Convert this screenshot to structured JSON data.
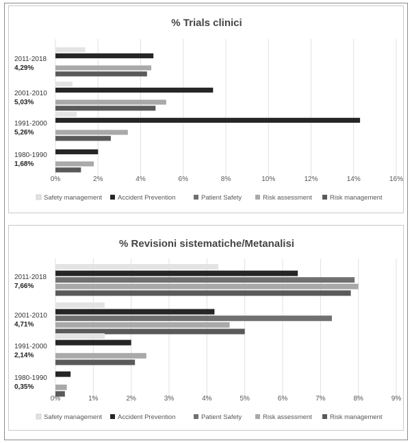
{
  "chart_data": [
    {
      "type": "bar",
      "orientation": "horizontal",
      "title": "% Trials clinici",
      "categories": [
        {
          "period": "2011-2018",
          "total": "4,29%"
        },
        {
          "period": "2001-2010",
          "total": "5,03%"
        },
        {
          "period": "1991-2000",
          "total": "5,26%"
        },
        {
          "period": "1980-1990",
          "total": "1,68%"
        }
      ],
      "x_ticks": [
        "0%",
        "2%",
        "4%",
        "6%",
        "8%",
        "10%",
        "12%",
        "14%",
        "16%"
      ],
      "xlim": [
        0,
        16
      ],
      "grid": true,
      "legend_position": "bottom",
      "series": [
        {
          "name": "Safety management",
          "color": "#e3e3e3",
          "values": [
            1.4,
            0.8,
            1.0,
            0
          ]
        },
        {
          "name": "Accident Prevention",
          "color": "#262626",
          "values": [
            4.6,
            7.4,
            14.3,
            2.0
          ]
        },
        {
          "name": "Patient Safety",
          "color": "#707070",
          "values": [
            0,
            0,
            0,
            0
          ]
        },
        {
          "name": "Risk assessment",
          "color": "#a9a9a9",
          "values": [
            4.5,
            5.2,
            3.4,
            1.8
          ]
        },
        {
          "name": "Risk management",
          "color": "#5a5a5a",
          "values": [
            4.3,
            4.7,
            2.6,
            1.2
          ]
        }
      ]
    },
    {
      "type": "bar",
      "orientation": "horizontal",
      "title": "% Revisioni sistematiche/Metanalisi",
      "categories": [
        {
          "period": "2011-2018",
          "total": "7,66%"
        },
        {
          "period": "2001-2010",
          "total": "4,71%"
        },
        {
          "period": "1991-2000",
          "total": "2,14%"
        },
        {
          "period": "1980-1990",
          "total": "0,35%"
        }
      ],
      "x_ticks": [
        "0%",
        "1%",
        "2%",
        "3%",
        "4%",
        "5%",
        "6%",
        "7%",
        "8%",
        "9%"
      ],
      "xlim": [
        0,
        9
      ],
      "grid": true,
      "legend_position": "bottom",
      "series": [
        {
          "name": "Safety management",
          "color": "#e3e3e3",
          "values": [
            4.3,
            1.3,
            1.3,
            0
          ]
        },
        {
          "name": "Accident Prevention",
          "color": "#262626",
          "values": [
            6.4,
            4.2,
            2.0,
            0.4
          ]
        },
        {
          "name": "Patient Safety",
          "color": "#707070",
          "values": [
            7.9,
            7.3,
            0,
            0
          ]
        },
        {
          "name": "Risk assessment",
          "color": "#a9a9a9",
          "values": [
            8.0,
            4.6,
            2.4,
            0.3
          ]
        },
        {
          "name": "Risk management",
          "color": "#5a5a5a",
          "values": [
            7.8,
            5.0,
            2.1,
            0.25
          ]
        }
      ]
    }
  ]
}
